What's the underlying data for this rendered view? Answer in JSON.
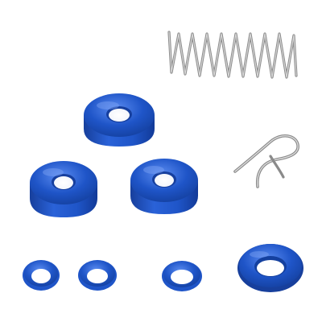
{
  "colors": {
    "background": "#ffffff",
    "seal_blue": "#1f55c8",
    "seal_blue_dark": "#123a98",
    "seal_blue_light": "#4a7ee6",
    "metal": "#a8a8a8",
    "metal_dark": "#777777",
    "metal_light": "#dcdcdc"
  },
  "icons": {
    "spring": "coil-spring-icon",
    "clip": "hairpin-clip-icon",
    "cup_seal": "cup-seal-icon",
    "o_ring": "o-ring-icon"
  }
}
